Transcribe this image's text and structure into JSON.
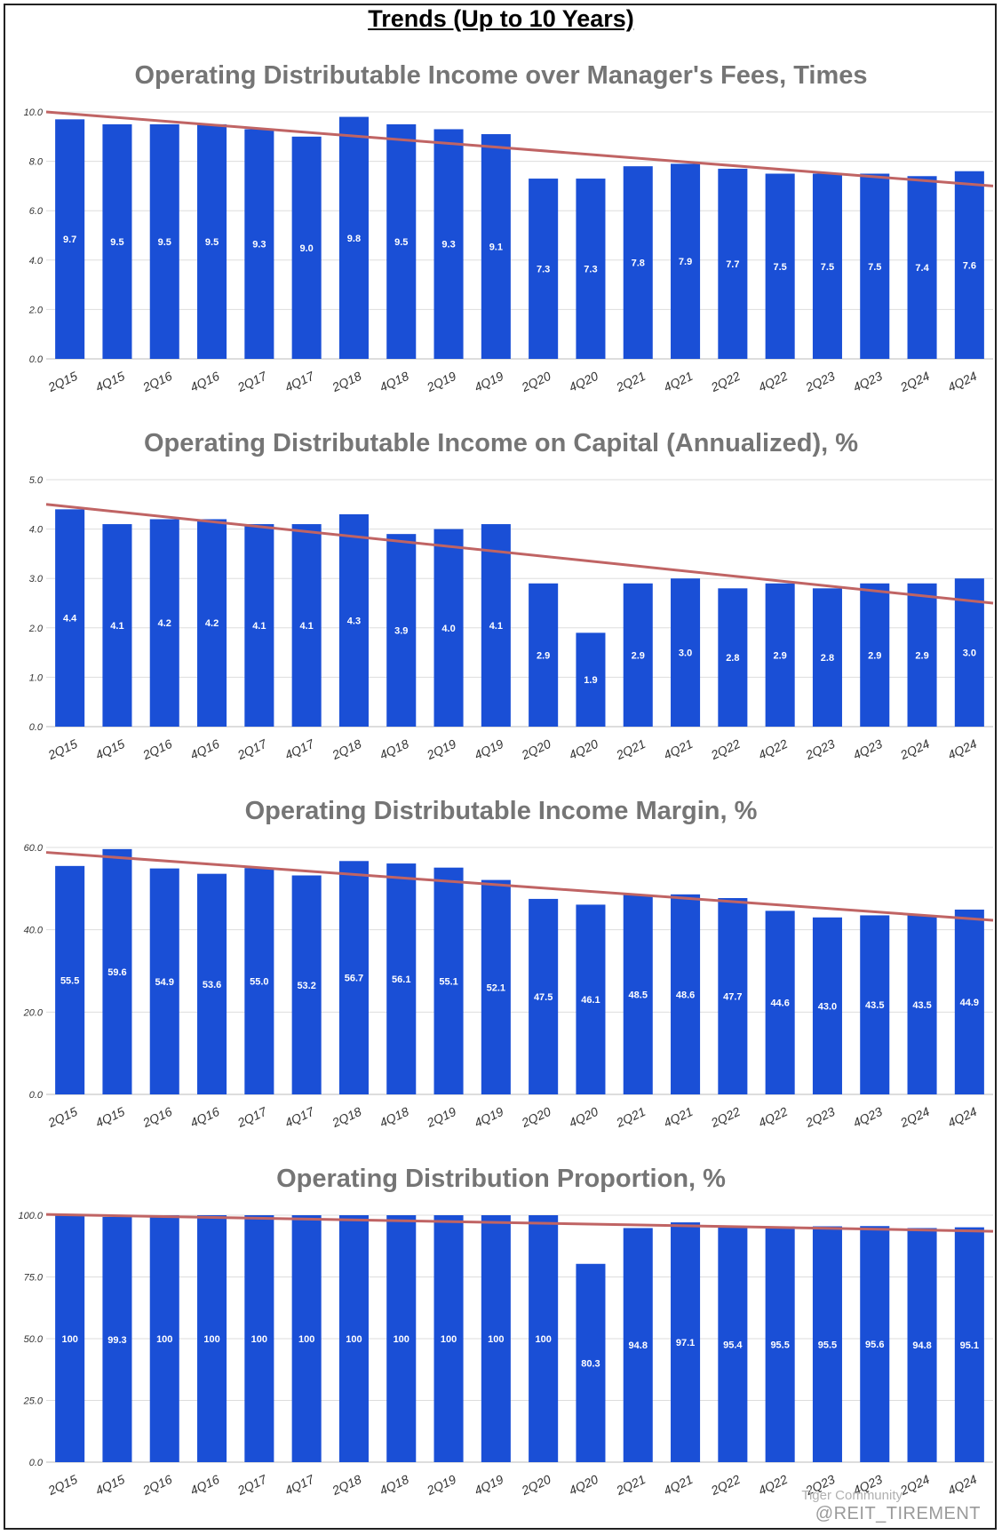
{
  "page_title": "Trends (Up to 10 Years)",
  "colors": {
    "bar": "#1a4fd6",
    "trend": "#c06464",
    "grid": "#dddddd",
    "axis_text": "#333333",
    "title_text": "#757575"
  },
  "chart_data": [
    {
      "type": "bar",
      "title": "Operating Distributable Income over Manager's Fees, Times",
      "categories": [
        "2Q15",
        "4Q15",
        "2Q16",
        "4Q16",
        "2Q17",
        "4Q17",
        "2Q18",
        "4Q18",
        "2Q19",
        "4Q19",
        "2Q20",
        "4Q20",
        "2Q21",
        "4Q21",
        "2Q22",
        "4Q22",
        "2Q23",
        "4Q23",
        "2Q24",
        "4Q24"
      ],
      "values": [
        9.7,
        9.5,
        9.5,
        9.5,
        9.3,
        9.0,
        9.8,
        9.5,
        9.3,
        9.1,
        7.3,
        7.3,
        7.8,
        7.9,
        7.7,
        7.5,
        7.5,
        7.5,
        7.4,
        7.6
      ],
      "labels": [
        "9.7",
        "9.5",
        "9.5",
        "9.5",
        "9.3",
        "9.0",
        "9.8",
        "9.5",
        "9.3",
        "9.1",
        "7.3",
        "7.3",
        "7.8",
        "7.9",
        "7.7",
        "7.5",
        "7.5",
        "7.5",
        "7.4",
        "7.6"
      ],
      "ylim": [
        0,
        10
      ],
      "yticks": [
        "0.0",
        "2.0",
        "4.0",
        "6.0",
        "8.0",
        "10.0"
      ],
      "ytick_values": [
        0,
        2,
        4,
        6,
        8,
        10
      ],
      "trendline": [
        10.0,
        7.0
      ],
      "grid": true
    },
    {
      "type": "bar",
      "title": "Operating Distributable Income on Capital (Annualized), %",
      "categories": [
        "2Q15",
        "4Q15",
        "2Q16",
        "4Q16",
        "2Q17",
        "4Q17",
        "2Q18",
        "4Q18",
        "2Q19",
        "4Q19",
        "2Q20",
        "4Q20",
        "2Q21",
        "4Q21",
        "2Q22",
        "4Q22",
        "2Q23",
        "4Q23",
        "2Q24",
        "4Q24"
      ],
      "values": [
        4.4,
        4.1,
        4.2,
        4.2,
        4.1,
        4.1,
        4.3,
        3.9,
        4.0,
        4.1,
        2.9,
        1.9,
        2.9,
        3.0,
        2.8,
        2.9,
        2.8,
        2.9,
        2.9,
        3.0
      ],
      "labels": [
        "4.4",
        "4.1",
        "4.2",
        "4.2",
        "4.1",
        "4.1",
        "4.3",
        "3.9",
        "4.0",
        "4.1",
        "2.9",
        "1.9",
        "2.9",
        "3.0",
        "2.8",
        "2.9",
        "2.8",
        "2.9",
        "2.9",
        "3.0"
      ],
      "ylim": [
        0,
        5
      ],
      "yticks": [
        "0.0",
        "1.0",
        "2.0",
        "3.0",
        "4.0",
        "5.0"
      ],
      "ytick_values": [
        0,
        1,
        2,
        3,
        4,
        5
      ],
      "trendline": [
        4.5,
        2.5
      ],
      "grid": true
    },
    {
      "type": "bar",
      "title": "Operating Distributable Income Margin, %",
      "categories": [
        "2Q15",
        "4Q15",
        "2Q16",
        "4Q16",
        "2Q17",
        "4Q17",
        "2Q18",
        "4Q18",
        "2Q19",
        "4Q19",
        "2Q20",
        "4Q20",
        "2Q21",
        "4Q21",
        "2Q22",
        "4Q22",
        "2Q23",
        "4Q23",
        "2Q24",
        "4Q24"
      ],
      "values": [
        55.5,
        59.6,
        54.9,
        53.6,
        55.0,
        53.2,
        56.7,
        56.1,
        55.1,
        52.1,
        47.5,
        46.1,
        48.5,
        48.6,
        47.7,
        44.6,
        43.0,
        43.5,
        43.5,
        44.9
      ],
      "labels": [
        "55.5",
        "59.6",
        "54.9",
        "53.6",
        "55.0",
        "53.2",
        "56.7",
        "56.1",
        "55.1",
        "52.1",
        "47.5",
        "46.1",
        "48.5",
        "48.6",
        "47.7",
        "44.6",
        "43.0",
        "43.5",
        "43.5",
        "44.9"
      ],
      "ylim": [
        0,
        60
      ],
      "yticks": [
        "0.0",
        "20.0",
        "40.0",
        "60.0"
      ],
      "ytick_values": [
        0,
        20,
        40,
        60
      ],
      "trendline": [
        58.8,
        42.3
      ],
      "grid": true
    },
    {
      "type": "bar",
      "title": "Operating Distribution Proportion, %",
      "categories": [
        "2Q15",
        "4Q15",
        "2Q16",
        "4Q16",
        "2Q17",
        "4Q17",
        "2Q18",
        "4Q18",
        "2Q19",
        "4Q19",
        "2Q20",
        "4Q20",
        "2Q21",
        "4Q21",
        "2Q22",
        "4Q22",
        "2Q23",
        "4Q23",
        "2Q24",
        "4Q24"
      ],
      "values": [
        100,
        99.3,
        100,
        100,
        100,
        100,
        100,
        100,
        100,
        100,
        100,
        80.3,
        94.8,
        97.1,
        95.4,
        95.5,
        95.5,
        95.6,
        94.8,
        95.1
      ],
      "labels": [
        "100",
        "99.3",
        "100",
        "100",
        "100",
        "100",
        "100",
        "100",
        "100",
        "100",
        "100",
        "80.3",
        "94.8",
        "97.1",
        "95.4",
        "95.5",
        "95.5",
        "95.6",
        "94.8",
        "95.1"
      ],
      "ylim": [
        0,
        100
      ],
      "yticks": [
        "0.0",
        "25.0",
        "50.0",
        "75.0",
        "100.0"
      ],
      "ytick_values": [
        0,
        25,
        50,
        75,
        100
      ],
      "trendline": [
        100.3,
        93.5
      ],
      "grid": true
    }
  ],
  "watermark": {
    "brand": "Tiger Community",
    "handle": "@REIT_TIREMENT"
  }
}
